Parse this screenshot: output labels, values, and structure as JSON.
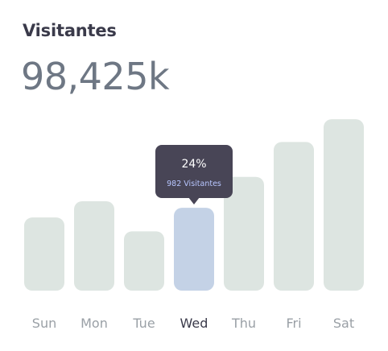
{
  "header": {
    "title": "Visitantes",
    "total": "98,425k"
  },
  "colors": {
    "bar": "#dde5e1",
    "bar_active": "#c4d2e6",
    "label": "#9aa0a6",
    "label_active": "#3a3a4a",
    "tooltip_bg": "#484556",
    "tooltip_text": "#ffffff",
    "tooltip_sub": "#b8c6ff"
  },
  "chart_data": {
    "type": "bar",
    "title": "Visitantes",
    "categories": [
      "Sun",
      "Mon",
      "Tue",
      "Wed",
      "Thu",
      "Fri",
      "Sat"
    ],
    "values": [
      90,
      110,
      73,
      102,
      140,
      183,
      211
    ],
    "ylim": [
      0,
      220
    ],
    "grid": false,
    "highlight_index": 3,
    "tooltip": {
      "percent": "24%",
      "label": "982 Visitantes"
    }
  }
}
